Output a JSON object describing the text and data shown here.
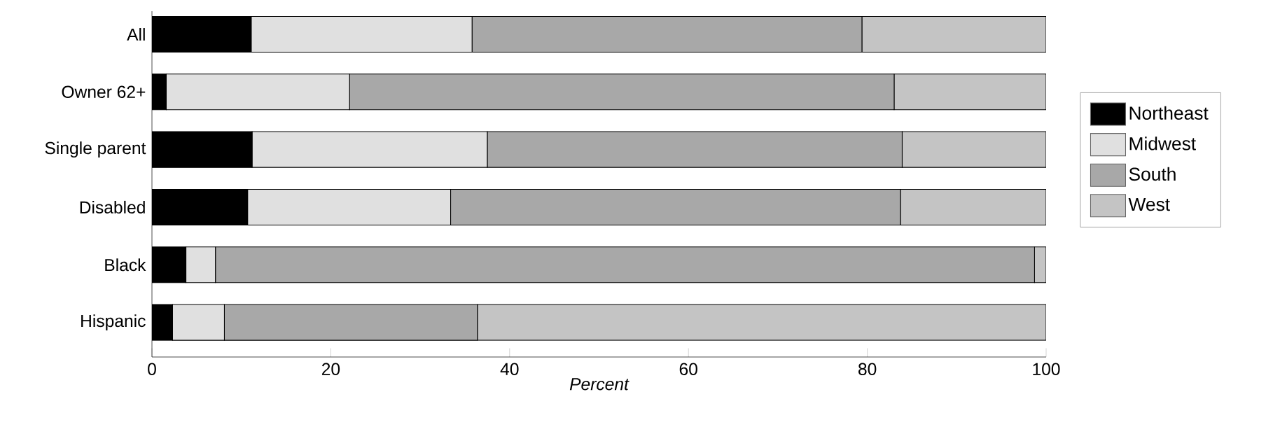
{
  "chart_data": {
    "type": "bar",
    "orientation": "horizontal",
    "stacked": true,
    "categories": [
      "All",
      "Owner 62+",
      "Single parent",
      "Disabled",
      "Black",
      "Hispanic"
    ],
    "series": [
      {
        "name": "Northeast",
        "color": "#000000",
        "values": [
          11.1,
          1.6,
          11.2,
          10.7,
          3.8,
          2.3
        ]
      },
      {
        "name": "Midwest",
        "color": "#e0e0e0",
        "values": [
          24.7,
          20.5,
          26.3,
          22.7,
          3.3,
          5.8
        ]
      },
      {
        "name": "South",
        "color": "#a8a8a8",
        "values": [
          43.6,
          60.9,
          46.4,
          50.3,
          91.6,
          28.3
        ]
      },
      {
        "name": "West",
        "color": "#c4c4c4",
        "values": [
          20.6,
          17.0,
          16.1,
          16.3,
          1.3,
          63.6
        ]
      }
    ],
    "xlim": [
      0,
      100
    ],
    "xticks": [
      0,
      20,
      40,
      60,
      80,
      100
    ],
    "xlabel": "Percent",
    "legend": "right",
    "grid": false
  }
}
